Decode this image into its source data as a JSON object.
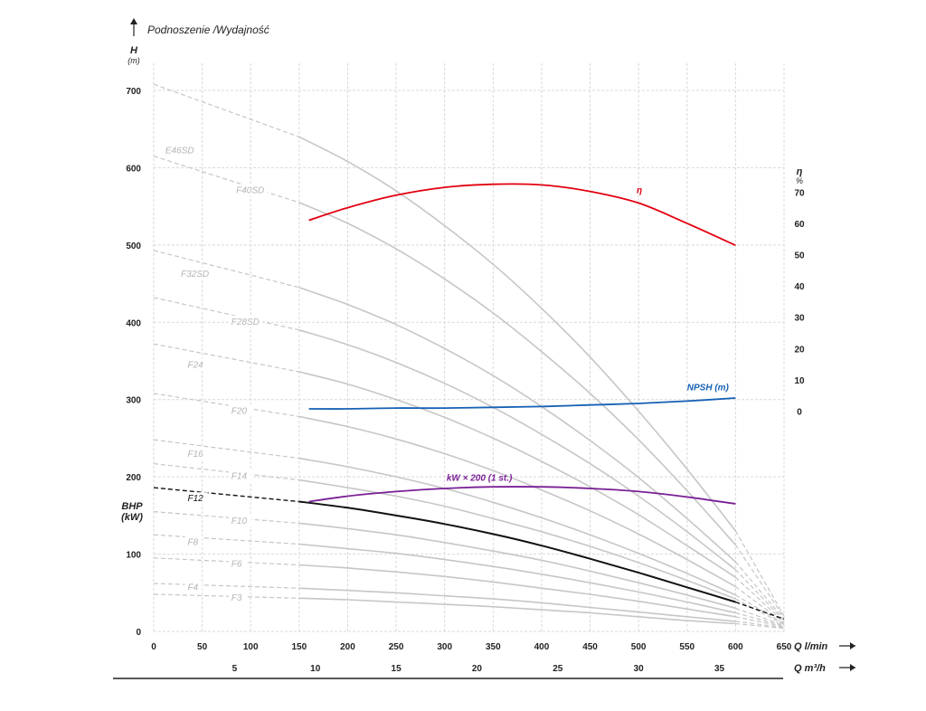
{
  "chart_data": {
    "type": "line",
    "title": "Podnoszenie /Wydajność",
    "grid": true,
    "y_axis": {
      "label": "H",
      "unit": "(m)",
      "range": [
        0,
        700
      ],
      "ticks": [
        "0",
        "100",
        "200",
        "300",
        "400",
        "500",
        "600",
        "700"
      ],
      "secondary_label": "BHP",
      "secondary_unit": "(kW)"
    },
    "eta_axis": {
      "label": "η",
      "unit": "%",
      "ticks": [
        "0",
        "10",
        "20",
        "30",
        "40",
        "50",
        "60",
        "70"
      ],
      "range": [
        0,
        70
      ],
      "h_at_zero": 285,
      "h_per_unit": 4.05
    },
    "x_axis": {
      "label": "Q l/min",
      "range": [
        0,
        650
      ],
      "ticks": [
        "0",
        "50",
        "100",
        "150",
        "200",
        "250",
        "300",
        "350",
        "400",
        "450",
        "500",
        "550",
        "600",
        "650"
      ]
    },
    "x2_axis": {
      "label": "Q m³/h",
      "ticks": [
        "5",
        "10",
        "15",
        "20",
        "25",
        "30",
        "35"
      ],
      "lpm_per_unit": 16.667
    },
    "pump_curves": [
      {
        "name": "E46SD",
        "h0": 708,
        "solid_from": 150,
        "solid_to": 600,
        "end_q": 650,
        "end_h": 20,
        "points": [
          [
            0,
            708
          ],
          [
            150,
            640
          ],
          [
            200,
            608
          ],
          [
            250,
            570
          ],
          [
            300,
            525
          ],
          [
            350,
            475
          ],
          [
            400,
            418
          ],
          [
            450,
            355
          ],
          [
            500,
            285
          ],
          [
            550,
            210
          ],
          [
            600,
            130
          ]
        ]
      },
      {
        "name": "F40SD",
        "h0": 615,
        "solid_from": 150,
        "solid_to": 600,
        "end_q": 650,
        "end_h": 18,
        "points": [
          [
            0,
            615
          ],
          [
            150,
            555
          ],
          [
            200,
            528
          ],
          [
            250,
            495
          ],
          [
            300,
            456
          ],
          [
            350,
            412
          ],
          [
            400,
            362
          ],
          [
            450,
            308
          ],
          [
            500,
            248
          ],
          [
            550,
            182
          ],
          [
            600,
            112
          ]
        ]
      },
      {
        "name": "F32SD",
        "h0": 493,
        "solid_from": 150,
        "solid_to": 600,
        "end_q": 650,
        "end_h": 16,
        "points": [
          [
            0,
            493
          ],
          [
            150,
            445
          ],
          [
            200,
            423
          ],
          [
            250,
            397
          ],
          [
            300,
            366
          ],
          [
            350,
            331
          ],
          [
            400,
            291
          ],
          [
            450,
            247
          ],
          [
            500,
            199
          ],
          [
            550,
            146
          ],
          [
            600,
            90
          ]
        ]
      },
      {
        "name": "F28SD",
        "h0": 432,
        "solid_from": 150,
        "solid_to": 600,
        "end_q": 650,
        "end_h": 14,
        "points": [
          [
            0,
            432
          ],
          [
            150,
            390
          ],
          [
            200,
            371
          ],
          [
            250,
            348
          ],
          [
            300,
            321
          ],
          [
            350,
            290
          ],
          [
            400,
            255
          ],
          [
            450,
            217
          ],
          [
            500,
            175
          ],
          [
            550,
            129
          ],
          [
            600,
            80
          ]
        ]
      },
      {
        "name": "F24",
        "h0": 372,
        "solid_from": 150,
        "solid_to": 600,
        "end_q": 650,
        "end_h": 12,
        "points": [
          [
            0,
            372
          ],
          [
            150,
            336
          ],
          [
            200,
            320
          ],
          [
            250,
            300
          ],
          [
            300,
            277
          ],
          [
            350,
            250
          ],
          [
            400,
            220
          ],
          [
            450,
            187
          ],
          [
            500,
            151
          ],
          [
            550,
            111
          ],
          [
            600,
            70
          ]
        ]
      },
      {
        "name": "F20",
        "h0": 308,
        "solid_from": 150,
        "solid_to": 600,
        "end_q": 650,
        "end_h": 11,
        "points": [
          [
            0,
            308
          ],
          [
            150,
            278
          ],
          [
            200,
            265
          ],
          [
            250,
            249
          ],
          [
            300,
            230
          ],
          [
            350,
            208
          ],
          [
            400,
            183
          ],
          [
            450,
            156
          ],
          [
            500,
            126
          ],
          [
            550,
            93
          ],
          [
            600,
            58
          ]
        ]
      },
      {
        "name": "F16",
        "h0": 248,
        "solid_from": 150,
        "solid_to": 600,
        "end_q": 650,
        "end_h": 10,
        "points": [
          [
            0,
            248
          ],
          [
            150,
            224
          ],
          [
            200,
            213
          ],
          [
            250,
            200
          ],
          [
            300,
            185
          ],
          [
            350,
            167
          ],
          [
            400,
            147
          ],
          [
            450,
            125
          ],
          [
            500,
            101
          ],
          [
            550,
            75
          ],
          [
            600,
            47
          ]
        ]
      },
      {
        "name": "F14",
        "h0": 217,
        "solid_from": 150,
        "solid_to": 600,
        "end_q": 650,
        "end_h": 9,
        "points": [
          [
            0,
            217
          ],
          [
            150,
            196
          ],
          [
            200,
            186
          ],
          [
            250,
            175
          ],
          [
            300,
            162
          ],
          [
            350,
            146
          ],
          [
            400,
            129
          ],
          [
            450,
            110
          ],
          [
            500,
            89
          ],
          [
            550,
            66
          ],
          [
            600,
            42
          ]
        ]
      },
      {
        "name": "F12",
        "h0": 186,
        "solid_from": 150,
        "solid_to": 600,
        "end_q": 650,
        "end_h": 16,
        "highlight": true,
        "points": [
          [
            0,
            186
          ],
          [
            150,
            168
          ],
          [
            200,
            160
          ],
          [
            250,
            150
          ],
          [
            300,
            139
          ],
          [
            350,
            126
          ],
          [
            400,
            111
          ],
          [
            450,
            94
          ],
          [
            500,
            76
          ],
          [
            550,
            57
          ],
          [
            600,
            38
          ]
        ]
      },
      {
        "name": "F10",
        "h0": 155,
        "solid_from": 150,
        "solid_to": 600,
        "end_q": 650,
        "end_h": 8,
        "points": [
          [
            0,
            155
          ],
          [
            150,
            140
          ],
          [
            200,
            133
          ],
          [
            250,
            125
          ],
          [
            300,
            115
          ],
          [
            350,
            104
          ],
          [
            400,
            92
          ],
          [
            450,
            78
          ],
          [
            500,
            63
          ],
          [
            550,
            47
          ],
          [
            600,
            30
          ]
        ]
      },
      {
        "name": "F8",
        "h0": 125,
        "solid_from": 150,
        "solid_to": 600,
        "end_q": 650,
        "end_h": 7,
        "points": [
          [
            0,
            125
          ],
          [
            150,
            113
          ],
          [
            200,
            107
          ],
          [
            250,
            101
          ],
          [
            300,
            93
          ],
          [
            350,
            84
          ],
          [
            400,
            74
          ],
          [
            450,
            63
          ],
          [
            500,
            51
          ],
          [
            550,
            38
          ],
          [
            600,
            24
          ]
        ]
      },
      {
        "name": "F6",
        "h0": 95,
        "solid_from": 150,
        "solid_to": 600,
        "end_q": 650,
        "end_h": 6,
        "points": [
          [
            0,
            95
          ],
          [
            150,
            86
          ],
          [
            200,
            82
          ],
          [
            250,
            77
          ],
          [
            300,
            71
          ],
          [
            350,
            64
          ],
          [
            400,
            56
          ],
          [
            450,
            48
          ],
          [
            500,
            39
          ],
          [
            550,
            29
          ],
          [
            600,
            19
          ]
        ]
      },
      {
        "name": "F4",
        "h0": 62,
        "solid_from": 150,
        "solid_to": 600,
        "end_q": 650,
        "end_h": 5,
        "points": [
          [
            0,
            62
          ],
          [
            150,
            56
          ],
          [
            200,
            53
          ],
          [
            250,
            50
          ],
          [
            300,
            46
          ],
          [
            350,
            42
          ],
          [
            400,
            37
          ],
          [
            450,
            31
          ],
          [
            500,
            25
          ],
          [
            550,
            19
          ],
          [
            600,
            13
          ]
        ]
      },
      {
        "name": "F3",
        "h0": 48,
        "solid_from": 150,
        "solid_to": 600,
        "end_q": 650,
        "end_h": 4,
        "points": [
          [
            0,
            48
          ],
          [
            150,
            43
          ],
          [
            200,
            41
          ],
          [
            250,
            38
          ],
          [
            300,
            35
          ],
          [
            350,
            32
          ],
          [
            400,
            28
          ],
          [
            450,
            24
          ],
          [
            500,
            19
          ],
          [
            550,
            14
          ],
          [
            600,
            10
          ]
        ]
      }
    ],
    "efficiency": {
      "name": "η",
      "color": "#e3000f",
      "points": [
        [
          160,
          61
        ],
        [
          200,
          65
        ],
        [
          250,
          69
        ],
        [
          300,
          71.5
        ],
        [
          350,
          72.5
        ],
        [
          400,
          72.3
        ],
        [
          450,
          70.2
        ],
        [
          500,
          66.5
        ],
        [
          550,
          60
        ],
        [
          600,
          53
        ]
      ]
    },
    "npsh": {
      "name": "NPSH (m)",
      "color": "#1560b5",
      "points": [
        [
          160,
          288
        ],
        [
          200,
          288
        ],
        [
          250,
          289
        ],
        [
          300,
          289
        ],
        [
          350,
          290
        ],
        [
          400,
          291
        ],
        [
          450,
          293
        ],
        [
          500,
          295
        ],
        [
          550,
          298
        ],
        [
          600,
          302
        ]
      ]
    },
    "power": {
      "name": "kW × 200 (1 st.)",
      "color": "#7a1f96",
      "points": [
        [
          160,
          168
        ],
        [
          200,
          175
        ],
        [
          250,
          181
        ],
        [
          300,
          185
        ],
        [
          350,
          187
        ],
        [
          400,
          187
        ],
        [
          450,
          185
        ],
        [
          500,
          181
        ],
        [
          550,
          174
        ],
        [
          600,
          165
        ]
      ]
    }
  }
}
